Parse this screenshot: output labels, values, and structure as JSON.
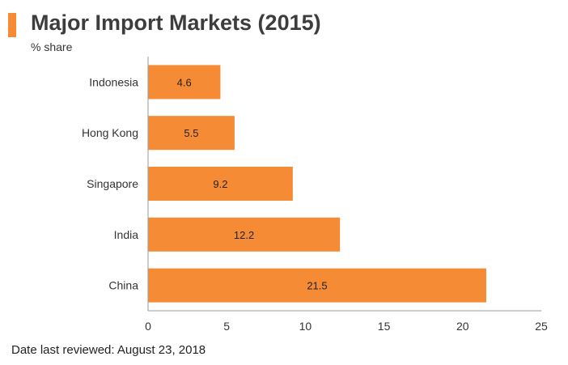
{
  "title": "Major Import Markets (2015)",
  "subtitle": "% share",
  "footer": "Date last reviewed: August 23, 2018",
  "colors": {
    "bar": "#f58c35",
    "accent": "#f58c35",
    "axis": "#9a9a9a"
  },
  "chart_data": {
    "type": "bar",
    "orientation": "horizontal",
    "categories": [
      "Indonesia",
      "Hong Kong",
      "Singapore",
      "India",
      "China"
    ],
    "values": [
      4.6,
      5.5,
      9.2,
      12.2,
      21.5
    ],
    "data_labels": [
      "4.6",
      "5.5",
      "9.2",
      "12.2",
      "21.5"
    ],
    "xlim": [
      0,
      25
    ],
    "xticks": [
      0,
      5,
      10,
      15,
      20,
      25
    ],
    "grid": false,
    "legend": "none"
  }
}
